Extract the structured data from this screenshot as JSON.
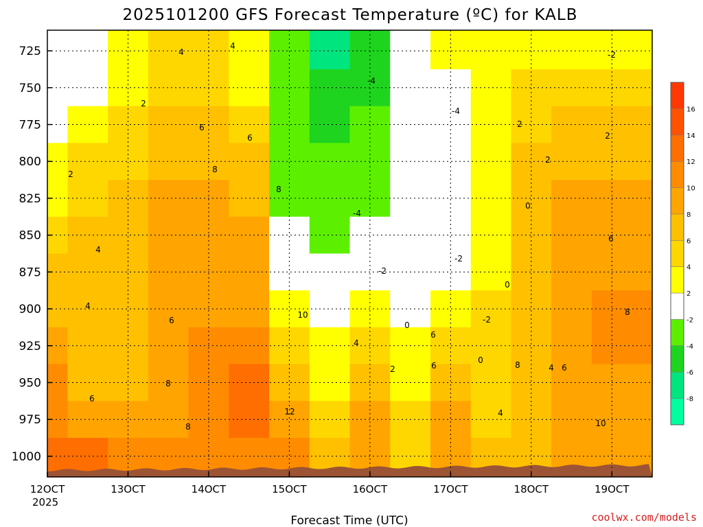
{
  "title": "2025101200 GFS Forecast Temperature (ºC) for KALB",
  "credit": "coolwx.com/models",
  "chart_data": {
    "type": "heatmap",
    "title": "2025101200 GFS Forecast Temperature (ºC) for KALB",
    "xlabel": "Forecast Time (UTC)",
    "ylabel": "",
    "x_ticks": [
      "12OCT",
      "13OCT",
      "14OCT",
      "15OCT",
      "16OCT",
      "17OCT",
      "18OCT",
      "19OCT"
    ],
    "x_year": "2025",
    "x_range_hours": [
      0,
      180
    ],
    "y_ticks": [
      725,
      750,
      775,
      800,
      825,
      850,
      875,
      900,
      925,
      950,
      975,
      1000
    ],
    "y_range_hPa": [
      711,
      1014
    ],
    "y_inverted": true,
    "color_levels": [
      -10,
      -8,
      -6,
      -4,
      -2,
      2,
      4,
      6,
      8,
      10,
      12,
      14,
      16,
      18
    ],
    "colors": [
      "#00ff9f",
      "#00e57e",
      "#1fd41f",
      "#5cf000",
      "#ffffff",
      "#ffff00",
      "#ffd700",
      "#ffc000",
      "#ffa400",
      "#ff8c00",
      "#ff6e00",
      "#ff5200",
      "#ff3800"
    ],
    "colorbar_labels": [
      "-8",
      "-6",
      "-4",
      "-2",
      "2",
      "4",
      "6",
      "8",
      "10",
      "12",
      "14",
      "16"
    ],
    "contour_labels": [
      "4",
      "4",
      "2",
      "2",
      "6",
      "6",
      "8",
      "8",
      "10",
      "12",
      "8",
      "6",
      "4",
      "4",
      "6",
      "8",
      "6",
      "6",
      "4",
      "2",
      "0",
      "0",
      "0",
      "2",
      "2",
      "-2",
      "-2",
      "-4",
      "-4",
      "-4",
      "-2",
      "4",
      "4",
      "6",
      "8",
      "10",
      "8",
      "6",
      "2",
      "0",
      "-2"
    ],
    "hours": [
      0,
      12,
      24,
      36,
      48,
      60,
      72,
      84,
      96,
      108,
      120,
      132,
      144,
      156,
      168,
      180
    ],
    "levels_hPa": [
      725,
      750,
      775,
      800,
      825,
      850,
      875,
      900,
      925,
      950,
      975,
      1000
    ],
    "values": [
      [
        0,
        0,
        3,
        4,
        4,
        3,
        -3,
        -7,
        -6,
        0,
        2,
        3,
        3,
        3,
        3,
        3
      ],
      [
        0,
        1,
        3,
        5,
        5,
        3,
        -3,
        -6,
        -5,
        0,
        0,
        2,
        4,
        4,
        4,
        4
      ],
      [
        1,
        3,
        4,
        6,
        6,
        4,
        -3,
        -5,
        -4,
        0,
        0,
        3,
        5,
        6,
        6,
        6
      ],
      [
        2,
        4,
        5,
        7,
        7,
        6,
        -3,
        -4,
        -3,
        0,
        0,
        3,
        6,
        7,
        7,
        7
      ],
      [
        3,
        5,
        6,
        8,
        8,
        7,
        -3,
        -4,
        -3,
        0,
        0,
        3,
        7,
        8,
        8,
        8
      ],
      [
        5,
        6,
        7,
        8,
        8,
        8,
        -2,
        -3,
        -2,
        0,
        0,
        3,
        7,
        8,
        9,
        9
      ],
      [
        6,
        6,
        7,
        8,
        8,
        8,
        -1,
        -2,
        0,
        0,
        0,
        3,
        7,
        8,
        9,
        9
      ],
      [
        7,
        6,
        7,
        8,
        9,
        9,
        2,
        0,
        2,
        0,
        2,
        5,
        7,
        9,
        10,
        10
      ],
      [
        8,
        6,
        7,
        8,
        10,
        10,
        5,
        2,
        4,
        3,
        4,
        4,
        7,
        9,
        10,
        10
      ],
      [
        10,
        7,
        7,
        8,
        10,
        12,
        6,
        3,
        6,
        2,
        6,
        4,
        6,
        8,
        9,
        9
      ],
      [
        11,
        9,
        8,
        9,
        10,
        12,
        8,
        4,
        8,
        4,
        8,
        5,
        6,
        8,
        8,
        8
      ],
      [
        12,
        12,
        10,
        10,
        10,
        11,
        10,
        6,
        9,
        5,
        9,
        6,
        6,
        8,
        8,
        8
      ]
    ]
  }
}
